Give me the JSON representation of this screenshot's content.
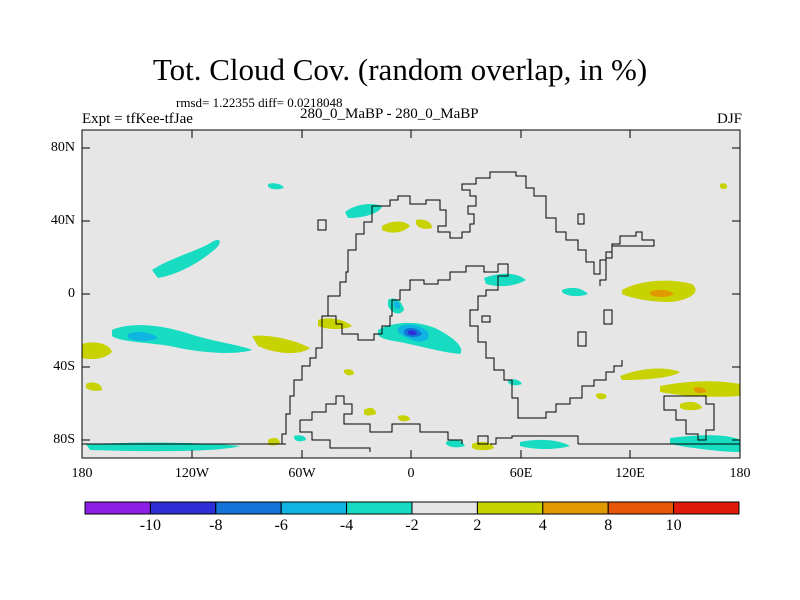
{
  "title": "Tot. Cloud Cov. (random overlap, in %)",
  "stats": "rmsd= 1.22355 diff= 0.0218048",
  "subtitle_left": "Expt = tfKee-tfJae",
  "subtitle_center": "280_0_MaBP - 280_0_MaBP",
  "subtitle_right": "DJF",
  "lat_labels": [
    "80N",
    "40N",
    "0",
    "40S",
    "80S"
  ],
  "lon_labels": [
    "180",
    "120W",
    "60W",
    "0",
    "60E",
    "120E",
    "180"
  ],
  "colorbar": {
    "labels": [
      "-10",
      "-8",
      "-6",
      "-4",
      "-2",
      "2",
      "4",
      "8",
      "10"
    ],
    "colors": [
      "#8c1ee6",
      "#2e2ed8",
      "#1473d8",
      "#0fb4e0",
      "#17dcc2",
      "#e6e6e6",
      "#c8d200",
      "#e09a00",
      "#e8560a",
      "#e01a0a"
    ]
  },
  "background_color": "#e6e6e6"
}
